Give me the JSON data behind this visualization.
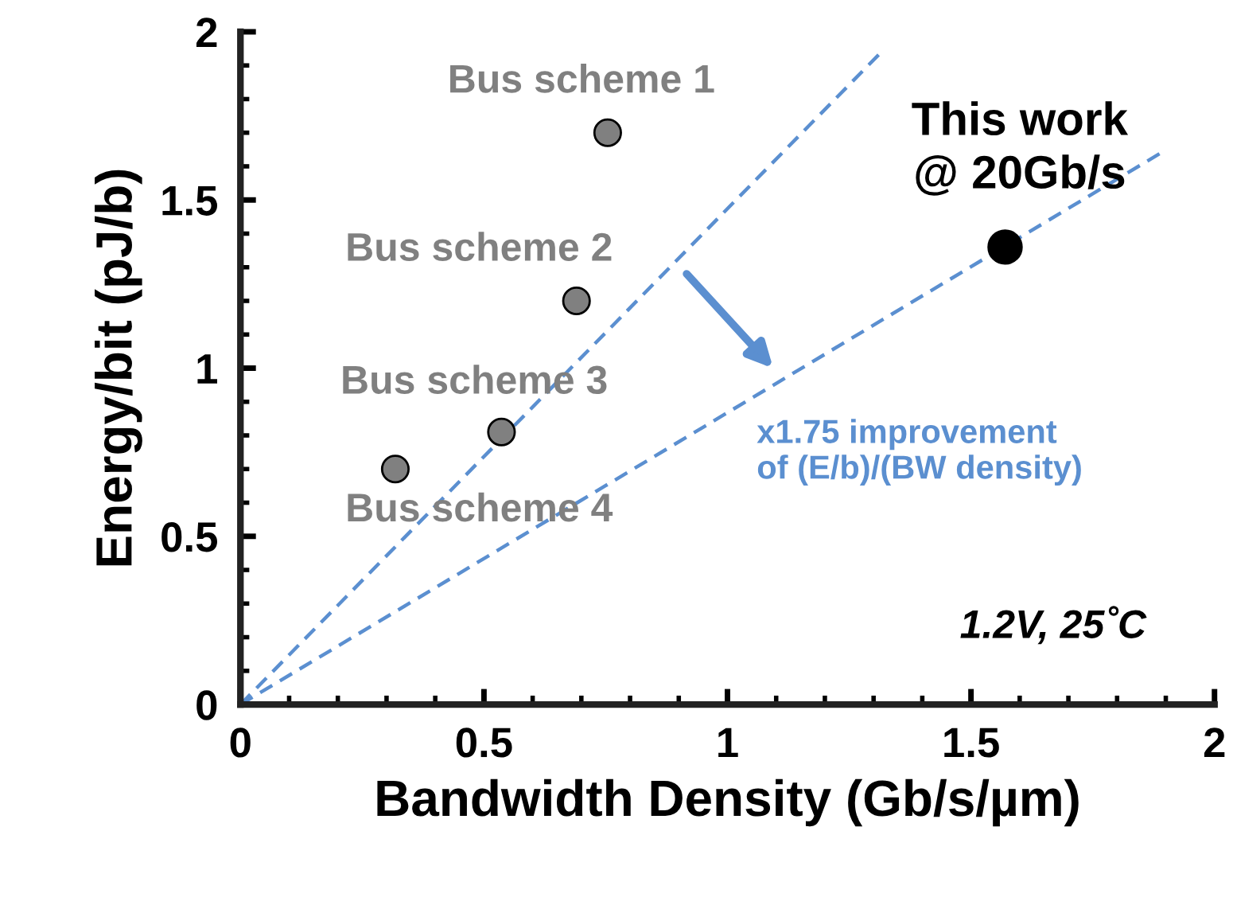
{
  "chart_data": {
    "type": "scatter",
    "xlabel": "Bandwidth Density (Gb/s/µm)",
    "ylabel": "Energy/bit (pJ/b)",
    "xlim": [
      0,
      2
    ],
    "ylim": [
      0,
      2
    ],
    "xticks": [
      0,
      0.5,
      1,
      1.5,
      2
    ],
    "yticks": [
      0,
      0.5,
      1,
      1.5,
      2
    ],
    "grid": false,
    "legend": false,
    "series": [
      {
        "color": "#808080",
        "x": [
          0.754,
          0.69,
          0.536,
          0.318
        ],
        "values": [
          1.7,
          1.2,
          0.81,
          0.7
        ],
        "marker": "circle"
      },
      {
        "color": "#000000",
        "x": [
          1.57
        ],
        "values": [
          1.36
        ],
        "marker": "circle"
      },
      {
        "type": "line",
        "color": "#5b8fd0",
        "x": [
          0,
          1.316
        ],
        "values": [
          0,
          1.94
        ],
        "line_style": "dashed",
        "marker": "none"
      },
      {
        "type": "line",
        "color": "#5b8fd0",
        "x": [
          0,
          1.89
        ],
        "values": [
          0,
          1.64
        ],
        "line_style": "dashed",
        "marker": "none"
      }
    ],
    "annotations": [
      "Bus scheme 1",
      "Bus scheme 2",
      "Bus scheme 3",
      "Bus scheme 4",
      "This work\n@ 20Gb/s",
      "x1.75 improvement\nof (E/b)/(BW density)",
      "1.2V, 25˚C"
    ]
  }
}
